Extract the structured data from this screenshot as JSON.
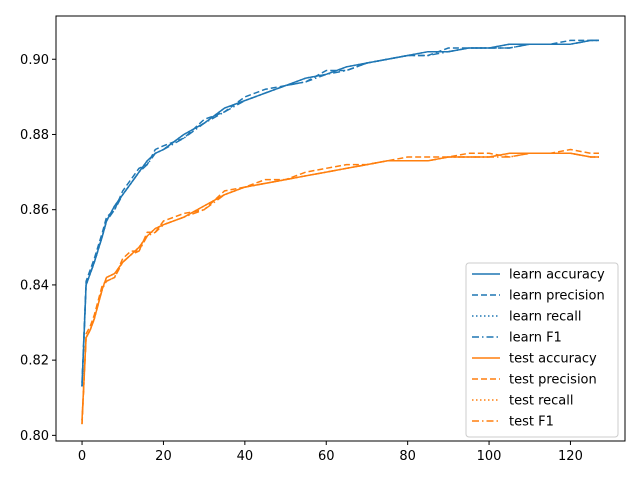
{
  "chart_data": {
    "type": "line",
    "title": "",
    "xlabel": "",
    "ylabel": "",
    "xlim": [
      -6.4,
      133.4
    ],
    "ylim": [
      0.7985,
      0.9115
    ],
    "xticks": [
      0,
      20,
      40,
      60,
      80,
      100,
      120
    ],
    "yticks": [
      0.8,
      0.82,
      0.84,
      0.86,
      0.88,
      0.9
    ],
    "ytick_labels": [
      "0.80",
      "0.82",
      "0.84",
      "0.86",
      "0.88",
      "0.90"
    ],
    "legend_position": "lower-right",
    "x": [
      0,
      1,
      2,
      3,
      5,
      6,
      8,
      10,
      12,
      14,
      16,
      18,
      20,
      25,
      30,
      35,
      40,
      45,
      50,
      55,
      60,
      65,
      70,
      75,
      80,
      85,
      90,
      95,
      100,
      105,
      110,
      115,
      120,
      125,
      127
    ],
    "series": [
      {
        "name": "learn accuracy",
        "color": "#1f77b4",
        "dash": "solid",
        "values": [
          0.813,
          0.84,
          0.843,
          0.846,
          0.853,
          0.857,
          0.861,
          0.864,
          0.867,
          0.87,
          0.873,
          0.875,
          0.876,
          0.88,
          0.883,
          0.887,
          0.889,
          0.891,
          0.893,
          0.895,
          0.896,
          0.898,
          0.899,
          0.9,
          0.901,
          0.902,
          0.902,
          0.903,
          0.903,
          0.904,
          0.904,
          0.904,
          0.904,
          0.905,
          0.905
        ]
      },
      {
        "name": "learn precision",
        "color": "#1f77b4",
        "dash": "dashed",
        "values": [
          0.814,
          0.841,
          0.844,
          0.847,
          0.854,
          0.858,
          0.86,
          0.865,
          0.868,
          0.871,
          0.872,
          0.876,
          0.877,
          0.879,
          0.884,
          0.886,
          0.89,
          0.892,
          0.893,
          0.894,
          0.897,
          0.897,
          0.899,
          0.9,
          0.901,
          0.901,
          0.903,
          0.903,
          0.903,
          0.903,
          0.904,
          0.904,
          0.905,
          0.905,
          0.905
        ]
      },
      {
        "name": "learn recall",
        "color": "#1f77b4",
        "dash": "dotted",
        "values": [
          0.813,
          0.84,
          0.843,
          0.846,
          0.853,
          0.857,
          0.861,
          0.864,
          0.867,
          0.87,
          0.873,
          0.875,
          0.876,
          0.88,
          0.883,
          0.887,
          0.889,
          0.891,
          0.893,
          0.895,
          0.896,
          0.898,
          0.899,
          0.9,
          0.901,
          0.902,
          0.902,
          0.903,
          0.903,
          0.904,
          0.904,
          0.904,
          0.904,
          0.905,
          0.905
        ]
      },
      {
        "name": "learn F1",
        "color": "#1f77b4",
        "dash": "dashdot",
        "values": [
          0.813,
          0.84,
          0.843,
          0.846,
          0.853,
          0.857,
          0.86,
          0.864,
          0.867,
          0.87,
          0.872,
          0.875,
          0.876,
          0.879,
          0.883,
          0.886,
          0.889,
          0.891,
          0.893,
          0.894,
          0.896,
          0.897,
          0.899,
          0.9,
          0.901,
          0.901,
          0.902,
          0.903,
          0.903,
          0.903,
          0.904,
          0.904,
          0.904,
          0.905,
          0.905
        ]
      },
      {
        "name": "test accuracy",
        "color": "#ff7f0e",
        "dash": "solid",
        "values": [
          0.804,
          0.826,
          0.828,
          0.831,
          0.839,
          0.842,
          0.843,
          0.846,
          0.848,
          0.85,
          0.853,
          0.855,
          0.856,
          0.858,
          0.861,
          0.864,
          0.866,
          0.867,
          0.868,
          0.869,
          0.87,
          0.871,
          0.872,
          0.873,
          0.873,
          0.873,
          0.874,
          0.874,
          0.874,
          0.875,
          0.875,
          0.875,
          0.875,
          0.874,
          0.874
        ]
      },
      {
        "name": "test precision",
        "color": "#ff7f0e",
        "dash": "dashed",
        "values": [
          0.803,
          0.827,
          0.829,
          0.832,
          0.84,
          0.841,
          0.842,
          0.847,
          0.849,
          0.849,
          0.854,
          0.854,
          0.857,
          0.859,
          0.86,
          0.865,
          0.866,
          0.868,
          0.868,
          0.87,
          0.871,
          0.872,
          0.872,
          0.873,
          0.874,
          0.874,
          0.874,
          0.875,
          0.875,
          0.874,
          0.875,
          0.875,
          0.876,
          0.875,
          0.875
        ]
      },
      {
        "name": "test recall",
        "color": "#ff7f0e",
        "dash": "dotted",
        "values": [
          0.804,
          0.826,
          0.828,
          0.831,
          0.839,
          0.842,
          0.843,
          0.846,
          0.848,
          0.85,
          0.853,
          0.855,
          0.856,
          0.858,
          0.861,
          0.864,
          0.866,
          0.867,
          0.868,
          0.869,
          0.87,
          0.871,
          0.872,
          0.873,
          0.873,
          0.873,
          0.874,
          0.874,
          0.874,
          0.875,
          0.875,
          0.875,
          0.875,
          0.874,
          0.874
        ]
      },
      {
        "name": "test F1",
        "color": "#ff7f0e",
        "dash": "dashdot",
        "values": [
          0.803,
          0.826,
          0.828,
          0.831,
          0.839,
          0.841,
          0.842,
          0.846,
          0.848,
          0.849,
          0.853,
          0.854,
          0.856,
          0.858,
          0.86,
          0.864,
          0.866,
          0.867,
          0.868,
          0.869,
          0.87,
          0.871,
          0.872,
          0.873,
          0.873,
          0.873,
          0.874,
          0.874,
          0.874,
          0.874,
          0.875,
          0.875,
          0.875,
          0.874,
          0.874
        ]
      }
    ]
  }
}
